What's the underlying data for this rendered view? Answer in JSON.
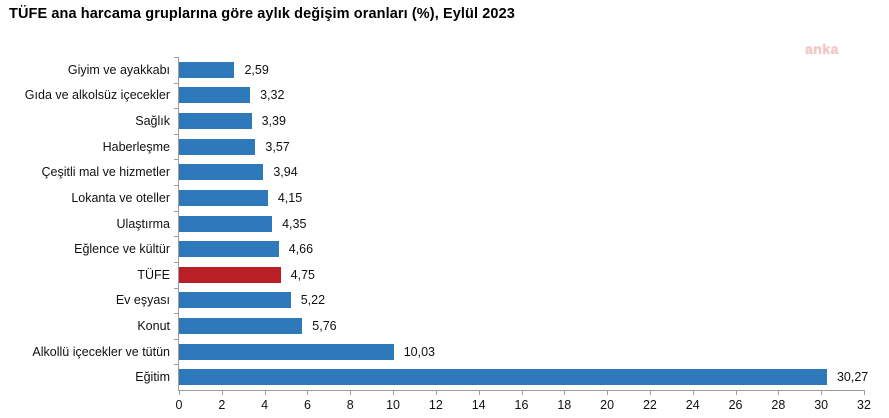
{
  "title": "TÜFE ana harcama gruplarına göre aylık değişim oranları (%), Eylül 2023",
  "watermark": "anka",
  "chart_data": {
    "type": "bar",
    "orientation": "horizontal",
    "title": "TÜFE ana harcama gruplarına göre aylık değişim oranları (%), Eylül 2023",
    "xlabel": "",
    "ylabel": "",
    "xlim": [
      0,
      32
    ],
    "x_ticks": [
      0,
      2,
      4,
      6,
      8,
      10,
      12,
      14,
      16,
      18,
      20,
      22,
      24,
      26,
      28,
      30,
      32
    ],
    "grid": false,
    "legend": false,
    "categories": [
      "Giyim ve ayakkabı",
      "Gıda ve alkolsüz içecekler",
      "Sağlık",
      "Haberleşme",
      "Çeşitli mal ve hizmetler",
      "Lokanta ve oteller",
      "Ulaştırma",
      "Eğlence ve kültür",
      "TÜFE",
      "Ev eşyası",
      "Konut",
      "Alkollü içecekler ve tütün",
      "Eğitim"
    ],
    "values": [
      2.59,
      3.32,
      3.39,
      3.57,
      3.94,
      4.15,
      4.35,
      4.66,
      4.75,
      5.22,
      5.76,
      10.03,
      30.27
    ],
    "value_labels": [
      "2,59",
      "3,32",
      "3,39",
      "3,57",
      "3,94",
      "4,15",
      "4,35",
      "4,66",
      "4,75",
      "5,22",
      "5,76",
      "10,03",
      "30,27"
    ],
    "highlight_category": "TÜFE",
    "bar_color": "#2e79b9",
    "highlight_color": "#b91f24",
    "axis_color": "#9d9d9d",
    "text_color": "#111111"
  }
}
